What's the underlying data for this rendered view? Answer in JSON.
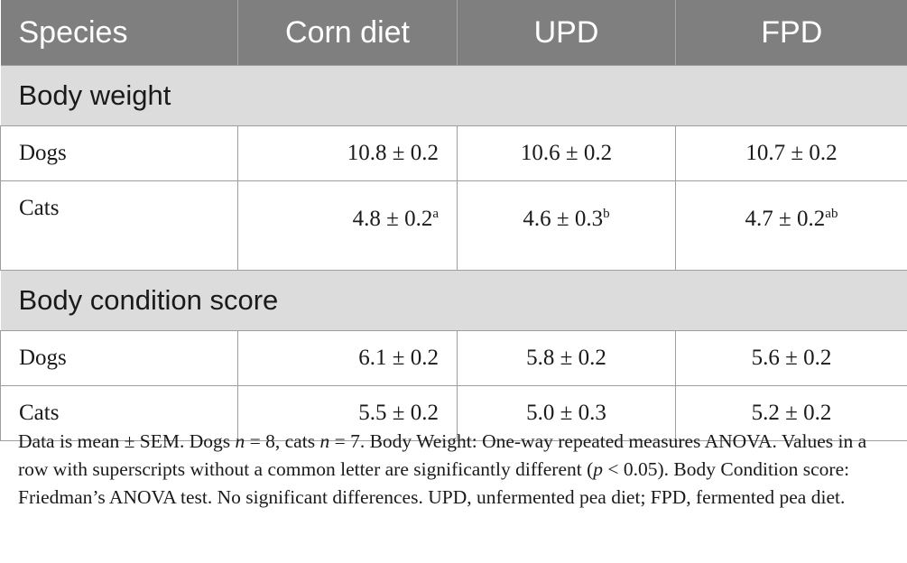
{
  "headers": [
    "Species",
    "Corn diet",
    "UPD",
    "FPD"
  ],
  "sections": [
    {
      "title": "Body weight",
      "rows": [
        {
          "species": "Dogs",
          "values": [
            {
              "v": "10.8 ± 0.2",
              "sup": ""
            },
            {
              "v": "10.6 ± 0.2",
              "sup": ""
            },
            {
              "v": "10.7 ± 0.2",
              "sup": ""
            }
          ]
        },
        {
          "species": "Cats",
          "values": [
            {
              "v": "4.8 ± 0.2",
              "sup": "a"
            },
            {
              "v": "4.6 ± 0.3",
              "sup": "b"
            },
            {
              "v": "4.7 ± 0.2",
              "sup": "ab"
            }
          ]
        }
      ]
    },
    {
      "title": "Body condition score",
      "rows": [
        {
          "species": "Dogs",
          "values": [
            {
              "v": "6.1 ± 0.2",
              "sup": ""
            },
            {
              "v": "5.8 ± 0.2",
              "sup": ""
            },
            {
              "v": "5.6 ± 0.2",
              "sup": ""
            }
          ]
        },
        {
          "species": "Cats",
          "values": [
            {
              "v": "5.5 ± 0.2",
              "sup": ""
            },
            {
              "v": "5.0 ± 0.3",
              "sup": ""
            },
            {
              "v": "5.2 ± 0.2",
              "sup": ""
            }
          ]
        }
      ]
    }
  ],
  "footnote": {
    "p1": "Data is mean ± SEM. Dogs ",
    "n1": "n",
    "p2": " = 8, cats ",
    "n2": "n",
    "p3": " = 7. Body Weight: One-way repeated measures ANOVA. Values in a row with superscripts without a common letter are significantly different (",
    "pv": "p",
    "p4": " < 0.05). Body Condition score: Friedman’s ANOVA test. No significant differences. UPD, unfermented pea diet; FPD, fermented pea diet."
  }
}
